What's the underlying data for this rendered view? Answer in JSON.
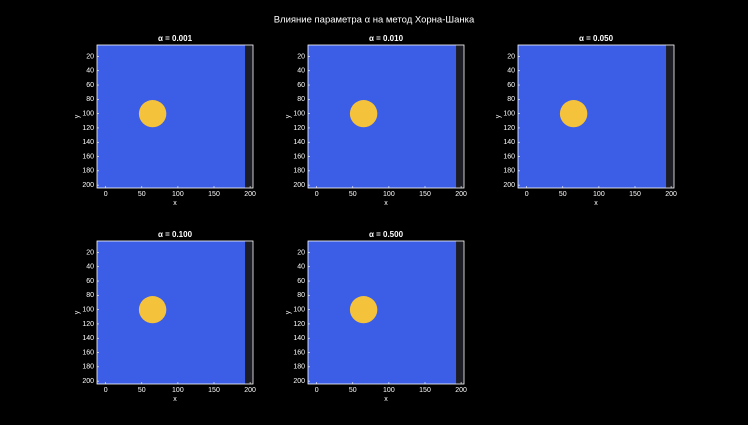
{
  "title": "Влияние параметра α на метод Хорна-Шанка",
  "chart_data": [
    {
      "type": "image",
      "title": "α = 0.001",
      "xlabel": "x",
      "ylabel": "y",
      "xlim": [
        -12,
        204
      ],
      "ylim": [
        204,
        4
      ],
      "y_reversed": true,
      "xticks": [
        0,
        50,
        100,
        150,
        200
      ],
      "yticks": [
        20,
        40,
        60,
        80,
        100,
        120,
        140,
        160,
        180,
        200
      ],
      "color": "#3c5de6",
      "band": {
        "x0": 193,
        "color": "#1c1c24"
      },
      "object": {
        "cx": 65,
        "cy": 100,
        "r": 19,
        "color": "#f5c23c"
      }
    },
    {
      "type": "image",
      "title": "α = 0.010",
      "xlabel": "x",
      "ylabel": "y",
      "xlim": [
        -12,
        204
      ],
      "ylim": [
        204,
        4
      ],
      "y_reversed": true,
      "xticks": [
        0,
        50,
        100,
        150,
        200
      ],
      "yticks": [
        20,
        40,
        60,
        80,
        100,
        120,
        140,
        160,
        180,
        200
      ],
      "color": "#3c5de6",
      "band": {
        "x0": 193,
        "color": "#1c1c24"
      },
      "object": {
        "cx": 65,
        "cy": 100,
        "r": 19,
        "color": "#f5c23c"
      }
    },
    {
      "type": "image",
      "title": "α = 0.050",
      "xlabel": "x",
      "ylabel": "y",
      "xlim": [
        -12,
        204
      ],
      "ylim": [
        204,
        4
      ],
      "y_reversed": true,
      "xticks": [
        0,
        50,
        100,
        150,
        200
      ],
      "yticks": [
        20,
        40,
        60,
        80,
        100,
        120,
        140,
        160,
        180,
        200
      ],
      "color": "#3c5de6",
      "band": {
        "x0": 193,
        "color": "#1c1c24"
      },
      "object": {
        "cx": 65,
        "cy": 100,
        "r": 19,
        "color": "#f5c23c"
      }
    },
    {
      "type": "image",
      "title": "α = 0.100",
      "xlabel": "x",
      "ylabel": "y",
      "xlim": [
        -12,
        204
      ],
      "ylim": [
        204,
        4
      ],
      "y_reversed": true,
      "xticks": [
        0,
        50,
        100,
        150,
        200
      ],
      "yticks": [
        20,
        40,
        60,
        80,
        100,
        120,
        140,
        160,
        180,
        200
      ],
      "color": "#3c5de6",
      "band": {
        "x0": 193,
        "color": "#1c1c24"
      },
      "object": {
        "cx": 65,
        "cy": 100,
        "r": 19,
        "color": "#f5c23c"
      }
    },
    {
      "type": "image",
      "title": "α = 0.500",
      "xlabel": "x",
      "ylabel": "y",
      "xlim": [
        -12,
        204
      ],
      "ylim": [
        204,
        4
      ],
      "y_reversed": true,
      "xticks": [
        0,
        50,
        100,
        150,
        200
      ],
      "yticks": [
        20,
        40,
        60,
        80,
        100,
        120,
        140,
        160,
        180,
        200
      ],
      "color": "#3c5de6",
      "band": {
        "x0": 193,
        "color": "#1c1c24"
      },
      "object": {
        "cx": 65,
        "cy": 100,
        "r": 19,
        "color": "#f5c23c"
      }
    }
  ]
}
